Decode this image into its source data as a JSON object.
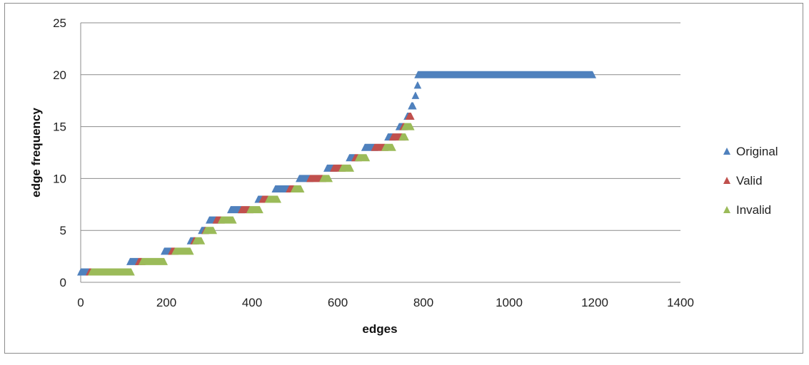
{
  "chart_data": {
    "type": "scatter",
    "title": "",
    "xlabel": "edges",
    "ylabel": "edge frequency",
    "xlim": [
      0,
      1400
    ],
    "ylim": [
      0,
      25
    ],
    "x_ticks": [
      0,
      200,
      400,
      600,
      800,
      1000,
      1200,
      1400
    ],
    "y_ticks": [
      0,
      5,
      10,
      15,
      20,
      25
    ],
    "grid": {
      "horizontal": true,
      "vertical": false
    },
    "legend": {
      "position": "right"
    },
    "marker": "triangle",
    "series": [
      {
        "name": "Original",
        "color": "#4F81BD",
        "segments": [
          {
            "y": 1,
            "x_start": 0,
            "x_end": 20
          },
          {
            "y": 2,
            "x_start": 115,
            "x_end": 135
          },
          {
            "y": 3,
            "x_start": 195,
            "x_end": 212
          },
          {
            "y": 4,
            "x_start": 256,
            "x_end": 264
          },
          {
            "y": 5,
            "x_start": 282,
            "x_end": 290
          },
          {
            "y": 6,
            "x_start": 300,
            "x_end": 316
          },
          {
            "y": 7,
            "x_start": 350,
            "x_end": 375
          },
          {
            "y": 8,
            "x_start": 414,
            "x_end": 424
          },
          {
            "y": 9,
            "x_start": 454,
            "x_end": 487
          },
          {
            "y": 10,
            "x_start": 510,
            "x_end": 535
          },
          {
            "y": 11,
            "x_start": 575,
            "x_end": 590
          },
          {
            "y": 12,
            "x_start": 627,
            "x_end": 640
          },
          {
            "y": 13,
            "x_start": 663,
            "x_end": 686
          },
          {
            "y": 14,
            "x_start": 717,
            "x_end": 728
          },
          {
            "y": 15,
            "x_start": 743,
            "x_end": 752
          },
          {
            "y": 16,
            "x_start": 762,
            "x_end": 766
          },
          {
            "y": 17,
            "x_start": 772,
            "x_end": 776
          },
          {
            "y": 18,
            "x_start": 781,
            "x_end": 782
          },
          {
            "y": 19,
            "x_start": 786,
            "x_end": 787
          },
          {
            "y": 20,
            "x_start": 787,
            "x_end": 1195
          }
        ]
      },
      {
        "name": "Valid",
        "color": "#C0504D",
        "segments": [
          {
            "y": 1,
            "x_start": 20,
            "x_end": 25
          },
          {
            "y": 2,
            "x_start": 135,
            "x_end": 143
          },
          {
            "y": 3,
            "x_start": 212,
            "x_end": 220
          },
          {
            "y": 4,
            "x_start": 264,
            "x_end": 268
          },
          {
            "y": 5,
            "x_start": 290,
            "x_end": 292
          },
          {
            "y": 6,
            "x_start": 316,
            "x_end": 328
          },
          {
            "y": 7,
            "x_start": 375,
            "x_end": 395
          },
          {
            "y": 8,
            "x_start": 424,
            "x_end": 438
          },
          {
            "y": 9,
            "x_start": 487,
            "x_end": 498
          },
          {
            "y": 10,
            "x_start": 535,
            "x_end": 565
          },
          {
            "y": 11,
            "x_start": 590,
            "x_end": 610
          },
          {
            "y": 12,
            "x_start": 640,
            "x_end": 648
          },
          {
            "y": 13,
            "x_start": 686,
            "x_end": 710
          },
          {
            "y": 14,
            "x_start": 728,
            "x_end": 750
          },
          {
            "y": 15,
            "x_start": 752,
            "x_end": 756
          },
          {
            "y": 16,
            "x_start": 766,
            "x_end": 771
          }
        ]
      },
      {
        "name": "Invalid",
        "color": "#9BBB59",
        "segments": [
          {
            "y": 1,
            "x_start": 25,
            "x_end": 118
          },
          {
            "y": 2,
            "x_start": 143,
            "x_end": 195
          },
          {
            "y": 3,
            "x_start": 220,
            "x_end": 256
          },
          {
            "y": 4,
            "x_start": 268,
            "x_end": 282
          },
          {
            "y": 5,
            "x_start": 292,
            "x_end": 310
          },
          {
            "y": 6,
            "x_start": 328,
            "x_end": 356
          },
          {
            "y": 7,
            "x_start": 395,
            "x_end": 418
          },
          {
            "y": 8,
            "x_start": 438,
            "x_end": 460
          },
          {
            "y": 9,
            "x_start": 498,
            "x_end": 514
          },
          {
            "y": 10,
            "x_start": 565,
            "x_end": 580
          },
          {
            "y": 11,
            "x_start": 610,
            "x_end": 630
          },
          {
            "y": 12,
            "x_start": 648,
            "x_end": 667
          },
          {
            "y": 13,
            "x_start": 710,
            "x_end": 728
          },
          {
            "y": 14,
            "x_start": 750,
            "x_end": 758
          },
          {
            "y": 15,
            "x_start": 756,
            "x_end": 771
          }
        ]
      }
    ]
  }
}
